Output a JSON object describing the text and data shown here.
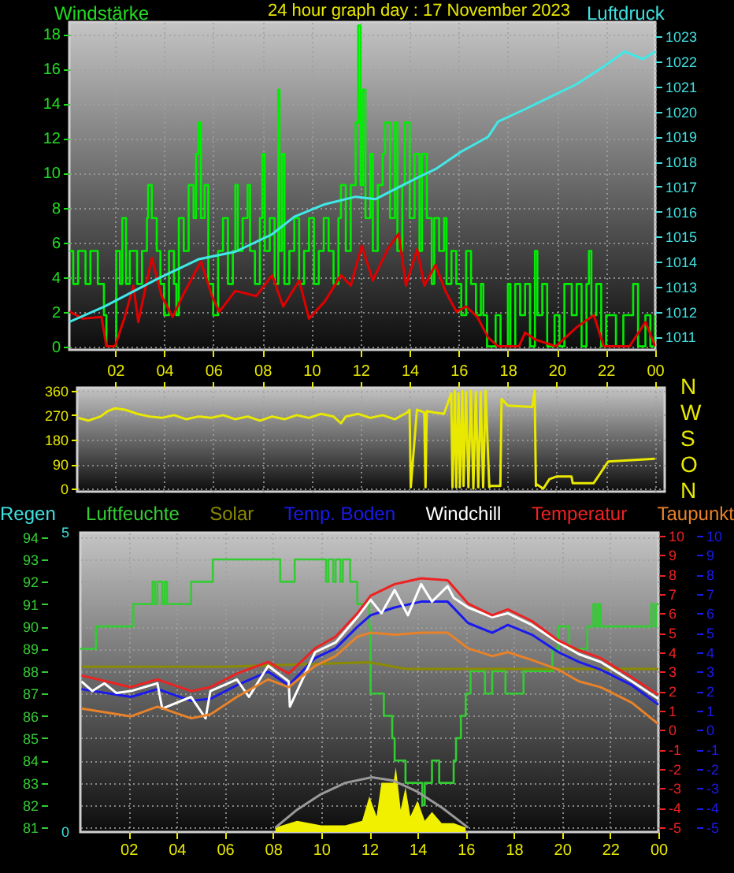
{
  "chart_data": [
    {
      "type": "line",
      "title": "24 hour graph day : 17 November 2023",
      "ylabel": "Windstärke",
      "y2label": "Luftdruck",
      "xlim": [
        0.14,
        24
      ],
      "xticks": [
        2,
        4,
        6,
        8,
        10,
        12,
        14,
        16,
        18,
        20,
        22,
        24
      ],
      "ylim": [
        -0.2,
        18.7
      ],
      "yticks": [
        0,
        2,
        4,
        6,
        8,
        10,
        12,
        14,
        16,
        18
      ],
      "y2lim": [
        1010.48,
        1023.58
      ],
      "tick_labels": "y",
      "y2ticks": [
        1011,
        1012,
        1013,
        1014,
        1015,
        1016,
        1017,
        1018,
        1019,
        1020,
        1021,
        1022,
        1023
      ],
      "grid": true,
      "series": [
        {
          "type": "step",
          "color": "#00ee00",
          "x": [
            0.15,
            0.3,
            0.5,
            0.8,
            1.0,
            1.3,
            1.55,
            1.65,
            2.0,
            2.05,
            2.2,
            2.3,
            2.45,
            2.6,
            2.9,
            3.1,
            3.3,
            3.35,
            3.5,
            3.7,
            3.85,
            4.0,
            4.2,
            4.4,
            4.5,
            4.6,
            4.8,
            5.0,
            5.2,
            5.3,
            5.4,
            5.5,
            5.65,
            5.8,
            6.0,
            6.2,
            6.4,
            6.6,
            6.8,
            6.9,
            7.0,
            7.2,
            7.4,
            7.5,
            7.7,
            7.9,
            8.0,
            8.1,
            8.3,
            8.5,
            8.65,
            8.7,
            8.8,
            8.9,
            9.1,
            9.3,
            9.5,
            9.7,
            9.9,
            10.1,
            10.3,
            10.5,
            10.7,
            10.9,
            11.1,
            11.2,
            11.4,
            11.6,
            11.8,
            11.9,
            12.0,
            12.1,
            12.2,
            12.4,
            12.5,
            12.7,
            12.9,
            13.0,
            13.2,
            13.4,
            13.5,
            13.7,
            13.8,
            14.0,
            14.2,
            14.4,
            14.5,
            14.7,
            14.9,
            15.0,
            15.2,
            15.4,
            15.5,
            15.7,
            15.9,
            16.1,
            16.3,
            16.5,
            16.7,
            16.9,
            17.0,
            17.15,
            17.5,
            17.7,
            18.0,
            18.1,
            18.3,
            18.5,
            18.7,
            18.9,
            19.1,
            19.2,
            19.4,
            19.6,
            19.9,
            20.1,
            20.3,
            20.6,
            20.8,
            21.0,
            21.2,
            21.3,
            21.4,
            21.6,
            21.8,
            22.0,
            22.4,
            22.7,
            23.1,
            23.3,
            23.6,
            23.8,
            24.0
          ],
          "values": [
            5.5,
            3.6,
            5.5,
            3.6,
            5.5,
            3.6,
            1.8,
            0,
            0,
            5.5,
            3.6,
            7.4,
            3.6,
            5.5,
            3.6,
            5.5,
            7.4,
            9.3,
            7.4,
            5.5,
            3.6,
            1.8,
            5.5,
            3.6,
            1.8,
            7.4,
            5.5,
            9.3,
            7.4,
            11.1,
            12.9,
            7.4,
            9.3,
            3.6,
            1.8,
            5.5,
            7.4,
            3.6,
            5.5,
            9.3,
            5.5,
            7.4,
            9.3,
            5.5,
            3.6,
            7.4,
            11.1,
            5.5,
            7.4,
            3.6,
            14.8,
            5.5,
            11.1,
            3.6,
            5.5,
            7.4,
            3.6,
            5.5,
            7.4,
            3.6,
            5.5,
            7.4,
            5.5,
            3.6,
            7.4,
            9.3,
            5.5,
            9.3,
            12.9,
            18.5,
            9.3,
            14.8,
            7.4,
            11.1,
            5.5,
            9.3,
            11.1,
            12.9,
            7.4,
            12.9,
            5.5,
            9.3,
            12.9,
            7.4,
            11.1,
            5.5,
            11.1,
            7.4,
            3.6,
            7.4,
            5.5,
            7.4,
            3.6,
            5.5,
            3.6,
            1.8,
            5.5,
            3.6,
            1.8,
            3.6,
            1.8,
            0,
            1.8,
            0,
            3.6,
            0,
            3.6,
            1.8,
            3.6,
            0,
            5.5,
            1.8,
            3.6,
            0,
            1.8,
            0,
            3.6,
            1.8,
            3.6,
            0,
            3.6,
            5.5,
            1.8,
            3.6,
            0,
            1.8,
            0,
            1.8,
            3.6,
            0,
            1.8,
            0,
            1.8
          ]
        },
        {
          "color": "#e00000",
          "x": [
            0.15,
            0.7,
            1.45,
            1.65,
            2.0,
            2.4,
            2.75,
            2.95,
            3.5,
            3.9,
            4.35,
            4.75,
            5.5,
            5.95,
            6.25,
            6.9,
            7.75,
            8.4,
            8.85,
            9.5,
            9.9,
            10.55,
            11.2,
            11.6,
            12.05,
            12.5,
            13.1,
            13.55,
            13.85,
            14.3,
            14.6,
            15.05,
            15.45,
            15.9,
            16.3,
            16.75,
            17.2,
            17.6,
            18.45,
            18.7,
            19.1,
            19.95,
            20.8,
            21.5,
            21.9,
            22.95,
            23.6,
            24.0
          ],
          "values": [
            2.0,
            1.6,
            1.7,
            0,
            0,
            1.7,
            3.5,
            1.4,
            5.1,
            2.9,
            1.7,
            2.9,
            4.9,
            2.9,
            2.0,
            3.2,
            2.9,
            4.1,
            2.3,
            3.8,
            1.6,
            2.6,
            4.1,
            3.5,
            5.8,
            3.8,
            5.6,
            6.5,
            3.5,
            5.6,
            3.5,
            4.7,
            3.2,
            2.0,
            2.3,
            1.7,
            0.5,
            0,
            0,
            0.8,
            0.4,
            0,
            1.1,
            1.8,
            0,
            0,
            1.4,
            0
          ]
        },
        {
          "axis": "y2",
          "color": "#40e8e8",
          "x": [
            0.15,
            1.55,
            3.7,
            5.4,
            6.9,
            8.4,
            9.3,
            10.55,
            11.8,
            12.6,
            14.4,
            15.05,
            16.1,
            17.2,
            17.6,
            18.7,
            19.75,
            20.8,
            21.9,
            22.75,
            23.5,
            24.0
          ],
          "values": [
            1011.6,
            1012.2,
            1013.3,
            1014.1,
            1014.4,
            1015.1,
            1015.8,
            1016.3,
            1016.6,
            1016.5,
            1017.4,
            1017.7,
            1018.4,
            1019.0,
            1019.6,
            1020.1,
            1020.6,
            1021.1,
            1021.8,
            1022.4,
            1022.1,
            1022.4
          ]
        }
      ]
    },
    {
      "type": "line",
      "xlim": [
        "2023-11-17T00:27",
        "2023-11-18T00:24"
      ],
      "xticks": [
        {
          "value": "2023-11-17T02:00",
          "label": "02"
        },
        {
          "value": "2023-11-17T04:00",
          "label": "04"
        },
        {
          "value": "2023-11-17T06:00",
          "label": "06"
        },
        {
          "value": "2023-11-17T08:00",
          "label": "08"
        },
        {
          "value": "2023-11-17T10:00",
          "label": "10"
        },
        {
          "value": "2023-11-17T12:00",
          "label": "12"
        },
        {
          "value": "2023-11-17T14:00",
          "label": "14"
        },
        {
          "value": "2023-11-17T16:00",
          "label": "16"
        },
        {
          "value": "2023-11-17T18:00",
          "label": "18"
        },
        {
          "value": "2023-11-17T20:00",
          "label": "20"
        },
        {
          "value": "2023-11-17T22:00",
          "label": "22"
        },
        {
          "value": "2023-11-18T00:00",
          "label": "00"
        }
      ],
      "ylim": [
        -11,
        371
      ],
      "yticks": [
        0,
        90,
        180,
        270,
        360
      ],
      "annotations": [
        "N",
        "W",
        "S",
        "O",
        "N"
      ],
      "grid": true,
      "series": [
        {
          "color": "#e8e800",
          "x": [
            "2023-11-17T00:30",
            "2023-11-17T00:54",
            "2023-11-17T01:24",
            "2023-11-17T01:42",
            "2023-11-17T02:00",
            "2023-11-17T02:24",
            "2023-11-17T02:54",
            "2023-11-17T03:24",
            "2023-11-17T03:54",
            "2023-11-17T04:24",
            "2023-11-17T04:54",
            "2023-11-17T05:24",
            "2023-11-17T05:54",
            "2023-11-17T06:24",
            "2023-11-17T06:54",
            "2023-11-17T07:24",
            "2023-11-17T07:54",
            "2023-11-17T08:24",
            "2023-11-17T08:54",
            "2023-11-17T09:24",
            "2023-11-17T09:54",
            "2023-11-17T10:24",
            "2023-11-17T10:54",
            "2023-11-17T11:12",
            "2023-11-17T11:24",
            "2023-11-17T11:54",
            "2023-11-17T12:24",
            "2023-11-17T12:54",
            "2023-11-17T13:24",
            "2023-11-17T13:54",
            "2023-11-17T14:00",
            "2023-11-17T14:03",
            "2023-11-17T14:18",
            "2023-11-17T14:36",
            "2023-11-17T14:39",
            "2023-11-17T14:42",
            "2023-11-17T15:00",
            "2023-11-17T15:24",
            "2023-11-17T15:42",
            "2023-11-17T15:45",
            "2023-11-17T15:51",
            "2023-11-17T15:54",
            "2023-11-17T16:00",
            "2023-11-17T16:03",
            "2023-11-17T16:09",
            "2023-11-17T16:12",
            "2023-11-17T16:18",
            "2023-11-17T16:24",
            "2023-11-17T16:30",
            "2023-11-17T16:36",
            "2023-11-17T16:42",
            "2023-11-17T16:48",
            "2023-11-17T16:54",
            "2023-11-17T17:00",
            "2023-11-17T17:06",
            "2023-11-17T17:15",
            "2023-11-17T17:18",
            "2023-11-17T17:42",
            "2023-11-17T17:45",
            "2023-11-17T18:00",
            "2023-11-17T19:00",
            "2023-11-17T19:06",
            "2023-11-17T19:09",
            "2023-11-17T19:12",
            "2023-11-17T19:27",
            "2023-11-17T19:42",
            "2023-11-17T20:00",
            "2023-11-17T20:36",
            "2023-11-17T20:39",
            "2023-11-17T21:18",
            "2023-11-17T21:30",
            "2023-11-17T21:48",
            "2023-11-17T22:06",
            "2023-11-18T00:00"
          ],
          "values": [
            260,
            250,
            265,
            285,
            295,
            290,
            275,
            265,
            260,
            270,
            255,
            265,
            260,
            270,
            255,
            265,
            250,
            265,
            255,
            270,
            260,
            275,
            265,
            240,
            265,
            275,
            260,
            270,
            255,
            280,
            290,
            5,
            290,
            280,
            5,
            285,
            280,
            275,
            350,
            5,
            360,
            5,
            350,
            5,
            360,
            10,
            355,
            5,
            360,
            0,
            355,
            5,
            355,
            5,
            360,
            5,
            10,
            10,
            330,
            305,
            300,
            360,
            10,
            15,
            0,
            35,
            45,
            45,
            20,
            20,
            20,
            60,
            100,
            110
          ]
        }
      ]
    },
    {
      "type": "line",
      "xlim": [
        "2023-11-17T00:00",
        "2023-11-18T00:00"
      ],
      "xticks": [
        {
          "value": "2023-11-17T02:00",
          "label": "02"
        },
        {
          "value": "2023-11-17T04:00",
          "label": "04"
        },
        {
          "value": "2023-11-17T06:00",
          "label": "06"
        },
        {
          "value": "2023-11-17T08:00",
          "label": "08"
        },
        {
          "value": "2023-11-17T10:00",
          "label": "10"
        },
        {
          "value": "2023-11-17T12:00",
          "label": "12"
        },
        {
          "value": "2023-11-17T14:00",
          "label": "14"
        },
        {
          "value": "2023-11-17T16:00",
          "label": "16"
        },
        {
          "value": "2023-11-17T18:00",
          "label": "18"
        },
        {
          "value": "2023-11-17T20:00",
          "label": "20"
        },
        {
          "value": "2023-11-17T22:00",
          "label": "22"
        },
        {
          "value": "2023-11-18T00:00",
          "label": "00"
        }
      ],
      "ylim": [
        80.8,
        94.2
      ],
      "yticks": [
        81,
        82,
        83,
        84,
        85,
        86,
        87,
        88,
        89,
        90,
        91,
        92,
        93,
        94
      ],
      "y2lim": [
        -5.25,
        10.15
      ],
      "y2ticks": [
        -5,
        -4,
        -3,
        -2,
        -1,
        0,
        1,
        2,
        3,
        4,
        5,
        6,
        7,
        8,
        9,
        10
      ],
      "y3lim": [
        -5.25,
        10.15
      ],
      "y3ticks": [
        -5,
        -4,
        -3,
        -2,
        -1,
        0,
        1,
        2,
        3,
        4,
        5,
        6,
        7,
        8,
        9,
        10
      ],
      "annotations": [
        "5",
        "0"
      ],
      "grid": true,
      "legend": "top",
      "series": [
        {
          "name": "Regen",
          "color": "#40e0e0"
        },
        {
          "name": "Luftfeuchte",
          "type": "step",
          "color": "#33cc33",
          "x": [
            "2023-11-17T00:00",
            "2023-11-17T00:39",
            "2023-11-17T02:12",
            "2023-11-17T03:00",
            "2023-11-17T03:06",
            "2023-11-17T03:12",
            "2023-11-17T03:24",
            "2023-11-17T03:30",
            "2023-11-17T03:36",
            "2023-11-17T04:36",
            "2023-11-17T05:30",
            "2023-11-17T08:18",
            "2023-11-17T08:54",
            "2023-11-17T10:12",
            "2023-11-17T10:18",
            "2023-11-17T10:30",
            "2023-11-17T10:36",
            "2023-11-17T10:48",
            "2023-11-17T10:54",
            "2023-11-17T11:12",
            "2023-11-17T11:30",
            "2023-11-17T12:00",
            "2023-11-17T12:03",
            "2023-11-17T12:36",
            "2023-11-17T12:57",
            "2023-11-17T13:03",
            "2023-11-17T13:30",
            "2023-11-17T14:12",
            "2023-11-17T14:18",
            "2023-11-17T14:36",
            "2023-11-17T14:54",
            "2023-11-17T15:30",
            "2023-11-17T15:36",
            "2023-11-17T15:48",
            "2023-11-17T16:00",
            "2023-11-17T16:12",
            "2023-11-17T16:48",
            "2023-11-17T17:06",
            "2023-11-17T17:39",
            "2023-11-17T18:24",
            "2023-11-17T19:36",
            "2023-11-17T19:51",
            "2023-11-17T20:18",
            "2023-11-17T21:03",
            "2023-11-17T21:18",
            "2023-11-17T21:24",
            "2023-11-17T21:30",
            "2023-11-17T21:36",
            "2023-11-17T23:42",
            "2023-11-17T23:48",
            "2023-11-17T23:54",
            "2023-11-18T00:00"
          ],
          "values": [
            89,
            90,
            91,
            92,
            91,
            92,
            91,
            92,
            91,
            92,
            93,
            92,
            93,
            92,
            93,
            92,
            93,
            92,
            93,
            92,
            91,
            90,
            87,
            86,
            85,
            84,
            83,
            82,
            83,
            84,
            83,
            84,
            85,
            86,
            87,
            88,
            87,
            88,
            87,
            88,
            89,
            90,
            89,
            90,
            91,
            90,
            91,
            90,
            91,
            90,
            91,
            91
          ]
        },
        {
          "name": "Solar",
          "color": "#8b8b00",
          "x": [
            "2023-11-17T00:03",
            "2023-11-17T06:00",
            "2023-11-17T12:00",
            "2023-11-17T13:30",
            "2023-11-18T00:00"
          ],
          "values": [
            88.2,
            88.2,
            88.4,
            88.1,
            88.1
          ]
        },
        {
          "name": "Temp. Boden",
          "axis": "y3",
          "color": "#1a1aee",
          "x": [
            "2023-11-17T00:03",
            "2023-11-17T02:06",
            "2023-11-17T03:12",
            "2023-11-17T04:36",
            "2023-11-17T05:24",
            "2023-11-17T06:30",
            "2023-11-17T07:48",
            "2023-11-17T08:39",
            "2023-11-17T09:45",
            "2023-11-17T10:36",
            "2023-11-17T11:30",
            "2023-11-17T12:03",
            "2023-11-17T13:03",
            "2023-11-17T14:09",
            "2023-11-17T15:15",
            "2023-11-17T16:06",
            "2023-11-17T17:06",
            "2023-11-17T17:45",
            "2023-11-17T18:45",
            "2023-11-17T19:51",
            "2023-11-17T20:42",
            "2023-11-17T21:36",
            "2023-11-17T22:54",
            "2023-11-18T00:00"
          ],
          "values": [
            2.1,
            1.7,
            2.1,
            1.5,
            1.6,
            2.3,
            3.0,
            2.3,
            3.7,
            4.2,
            5.3,
            5.9,
            6.3,
            6.6,
            6.6,
            5.5,
            5.0,
            5.4,
            4.9,
            4.0,
            3.5,
            3.1,
            2.3,
            1.3
          ]
        },
        {
          "name": "Windchill",
          "axis": "y2",
          "color": "#ffffff",
          "x": [
            "2023-11-17T00:03",
            "2023-11-17T00:30",
            "2023-11-17T01:00",
            "2023-11-17T01:30",
            "2023-11-17T02:06",
            "2023-11-17T03:12",
            "2023-11-17T03:24",
            "2023-11-17T04:36",
            "2023-11-17T05:12",
            "2023-11-17T05:24",
            "2023-11-17T06:30",
            "2023-11-17T07:00",
            "2023-11-17T07:48",
            "2023-11-17T08:39",
            "2023-11-17T08:42",
            "2023-11-17T09:45",
            "2023-11-17T10:36",
            "2023-11-17T11:30",
            "2023-11-17T12:03",
            "2023-11-17T12:30",
            "2023-11-17T13:03",
            "2023-11-17T13:36",
            "2023-11-17T14:09",
            "2023-11-17T14:36",
            "2023-11-17T15:15",
            "2023-11-17T15:30",
            "2023-11-17T16:06",
            "2023-11-17T17:06",
            "2023-11-17T17:45",
            "2023-11-17T18:45",
            "2023-11-17T19:51",
            "2023-11-17T20:42",
            "2023-11-17T21:36",
            "2023-11-17T22:54",
            "2023-11-18T00:00"
          ],
          "values": [
            2.5,
            2.0,
            2.4,
            1.9,
            2.0,
            2.4,
            1.1,
            1.7,
            0.6,
            2.0,
            2.6,
            1.7,
            3.3,
            2.5,
            1.2,
            4.0,
            4.5,
            5.8,
            6.7,
            6.0,
            7.2,
            5.9,
            7.5,
            6.6,
            7.4,
            6.8,
            6.3,
            5.8,
            6.0,
            5.4,
            4.5,
            3.9,
            3.5,
            2.5,
            1.6
          ]
        },
        {
          "name": "Temperatur",
          "axis": "y2",
          "color": "#ee2222",
          "x": [
            "2023-11-17T00:03",
            "2023-11-17T02:06",
            "2023-11-17T03:12",
            "2023-11-17T04:36",
            "2023-11-17T05:24",
            "2023-11-17T06:30",
            "2023-11-17T07:48",
            "2023-11-17T08:39",
            "2023-11-17T09:45",
            "2023-11-17T10:36",
            "2023-11-17T11:30",
            "2023-11-17T12:03",
            "2023-11-17T13:03",
            "2023-11-17T14:09",
            "2023-11-17T15:15",
            "2023-11-17T16:06",
            "2023-11-17T17:06",
            "2023-11-17T17:45",
            "2023-11-17T18:45",
            "2023-11-17T19:51",
            "2023-11-17T20:42",
            "2023-11-17T21:36",
            "2023-11-17T22:54",
            "2023-11-18T00:00"
          ],
          "values": [
            2.8,
            2.2,
            2.6,
            2.0,
            2.2,
            2.9,
            3.5,
            2.9,
            4.2,
            4.8,
            6.0,
            6.9,
            7.5,
            7.8,
            7.7,
            6.5,
            5.9,
            6.2,
            5.6,
            4.6,
            4.1,
            3.7,
            2.7,
            1.8
          ]
        },
        {
          "name": "Taupunkt",
          "axis": "y2",
          "color": "#e8822a",
          "x": [
            "2023-11-17T00:03",
            "2023-11-17T02:06",
            "2023-11-17T03:12",
            "2023-11-17T04:36",
            "2023-11-17T05:24",
            "2023-11-17T06:30",
            "2023-11-17T07:48",
            "2023-11-17T08:39",
            "2023-11-17T09:45",
            "2023-11-17T10:36",
            "2023-11-17T11:30",
            "2023-11-17T12:03",
            "2023-11-17T13:03",
            "2023-11-17T14:09",
            "2023-11-17T15:15",
            "2023-11-17T16:06",
            "2023-11-17T17:06",
            "2023-11-17T17:45",
            "2023-11-17T18:45",
            "2023-11-17T19:51",
            "2023-11-17T20:42",
            "2023-11-17T21:36",
            "2023-11-17T22:54",
            "2023-11-18T00:00"
          ],
          "values": [
            1.1,
            0.7,
            1.2,
            0.6,
            0.8,
            1.7,
            2.6,
            2.2,
            3.3,
            3.8,
            4.8,
            5.0,
            4.9,
            5.0,
            5.0,
            4.2,
            3.8,
            4.0,
            3.6,
            3.1,
            2.5,
            2.2,
            1.4,
            0.3
          ]
        },
        {
          "type": "area",
          "color": "#f0f000",
          "x": [
            "2023-11-17T08:06",
            "2023-11-17T09:00",
            "2023-11-17T10:00",
            "2023-11-17T11:00",
            "2023-11-17T11:42",
            "2023-11-17T12:00",
            "2023-11-17T12:18",
            "2023-11-17T12:30",
            "2023-11-17T13:00",
            "2023-11-17T13:06",
            "2023-11-17T13:18",
            "2023-11-17T13:30",
            "2023-11-17T13:42",
            "2023-11-17T14:00",
            "2023-11-17T14:18",
            "2023-11-17T14:36",
            "2023-11-17T15:00",
            "2023-11-17T15:30",
            "2023-11-17T16:00"
          ],
          "values": [
            81.0,
            81.3,
            81.1,
            81.1,
            81.3,
            82.4,
            81.5,
            83.0,
            83.0,
            83.7,
            81.8,
            82.8,
            81.5,
            82.2,
            81.3,
            81.7,
            81.2,
            81.2,
            81.0
          ]
        },
        {
          "color": "#9a9a9a",
          "x": [
            "2023-11-17T08:06",
            "2023-11-17T09:00",
            "2023-11-17T10:00",
            "2023-11-17T11:00",
            "2023-11-17T12:06",
            "2023-11-17T13:00",
            "2023-11-17T14:00",
            "2023-11-17T15:00",
            "2023-11-17T16:06"
          ],
          "values": [
            81.0,
            81.8,
            82.5,
            83.0,
            83.25,
            83.1,
            82.6,
            81.9,
            81.0
          ]
        }
      ]
    }
  ]
}
